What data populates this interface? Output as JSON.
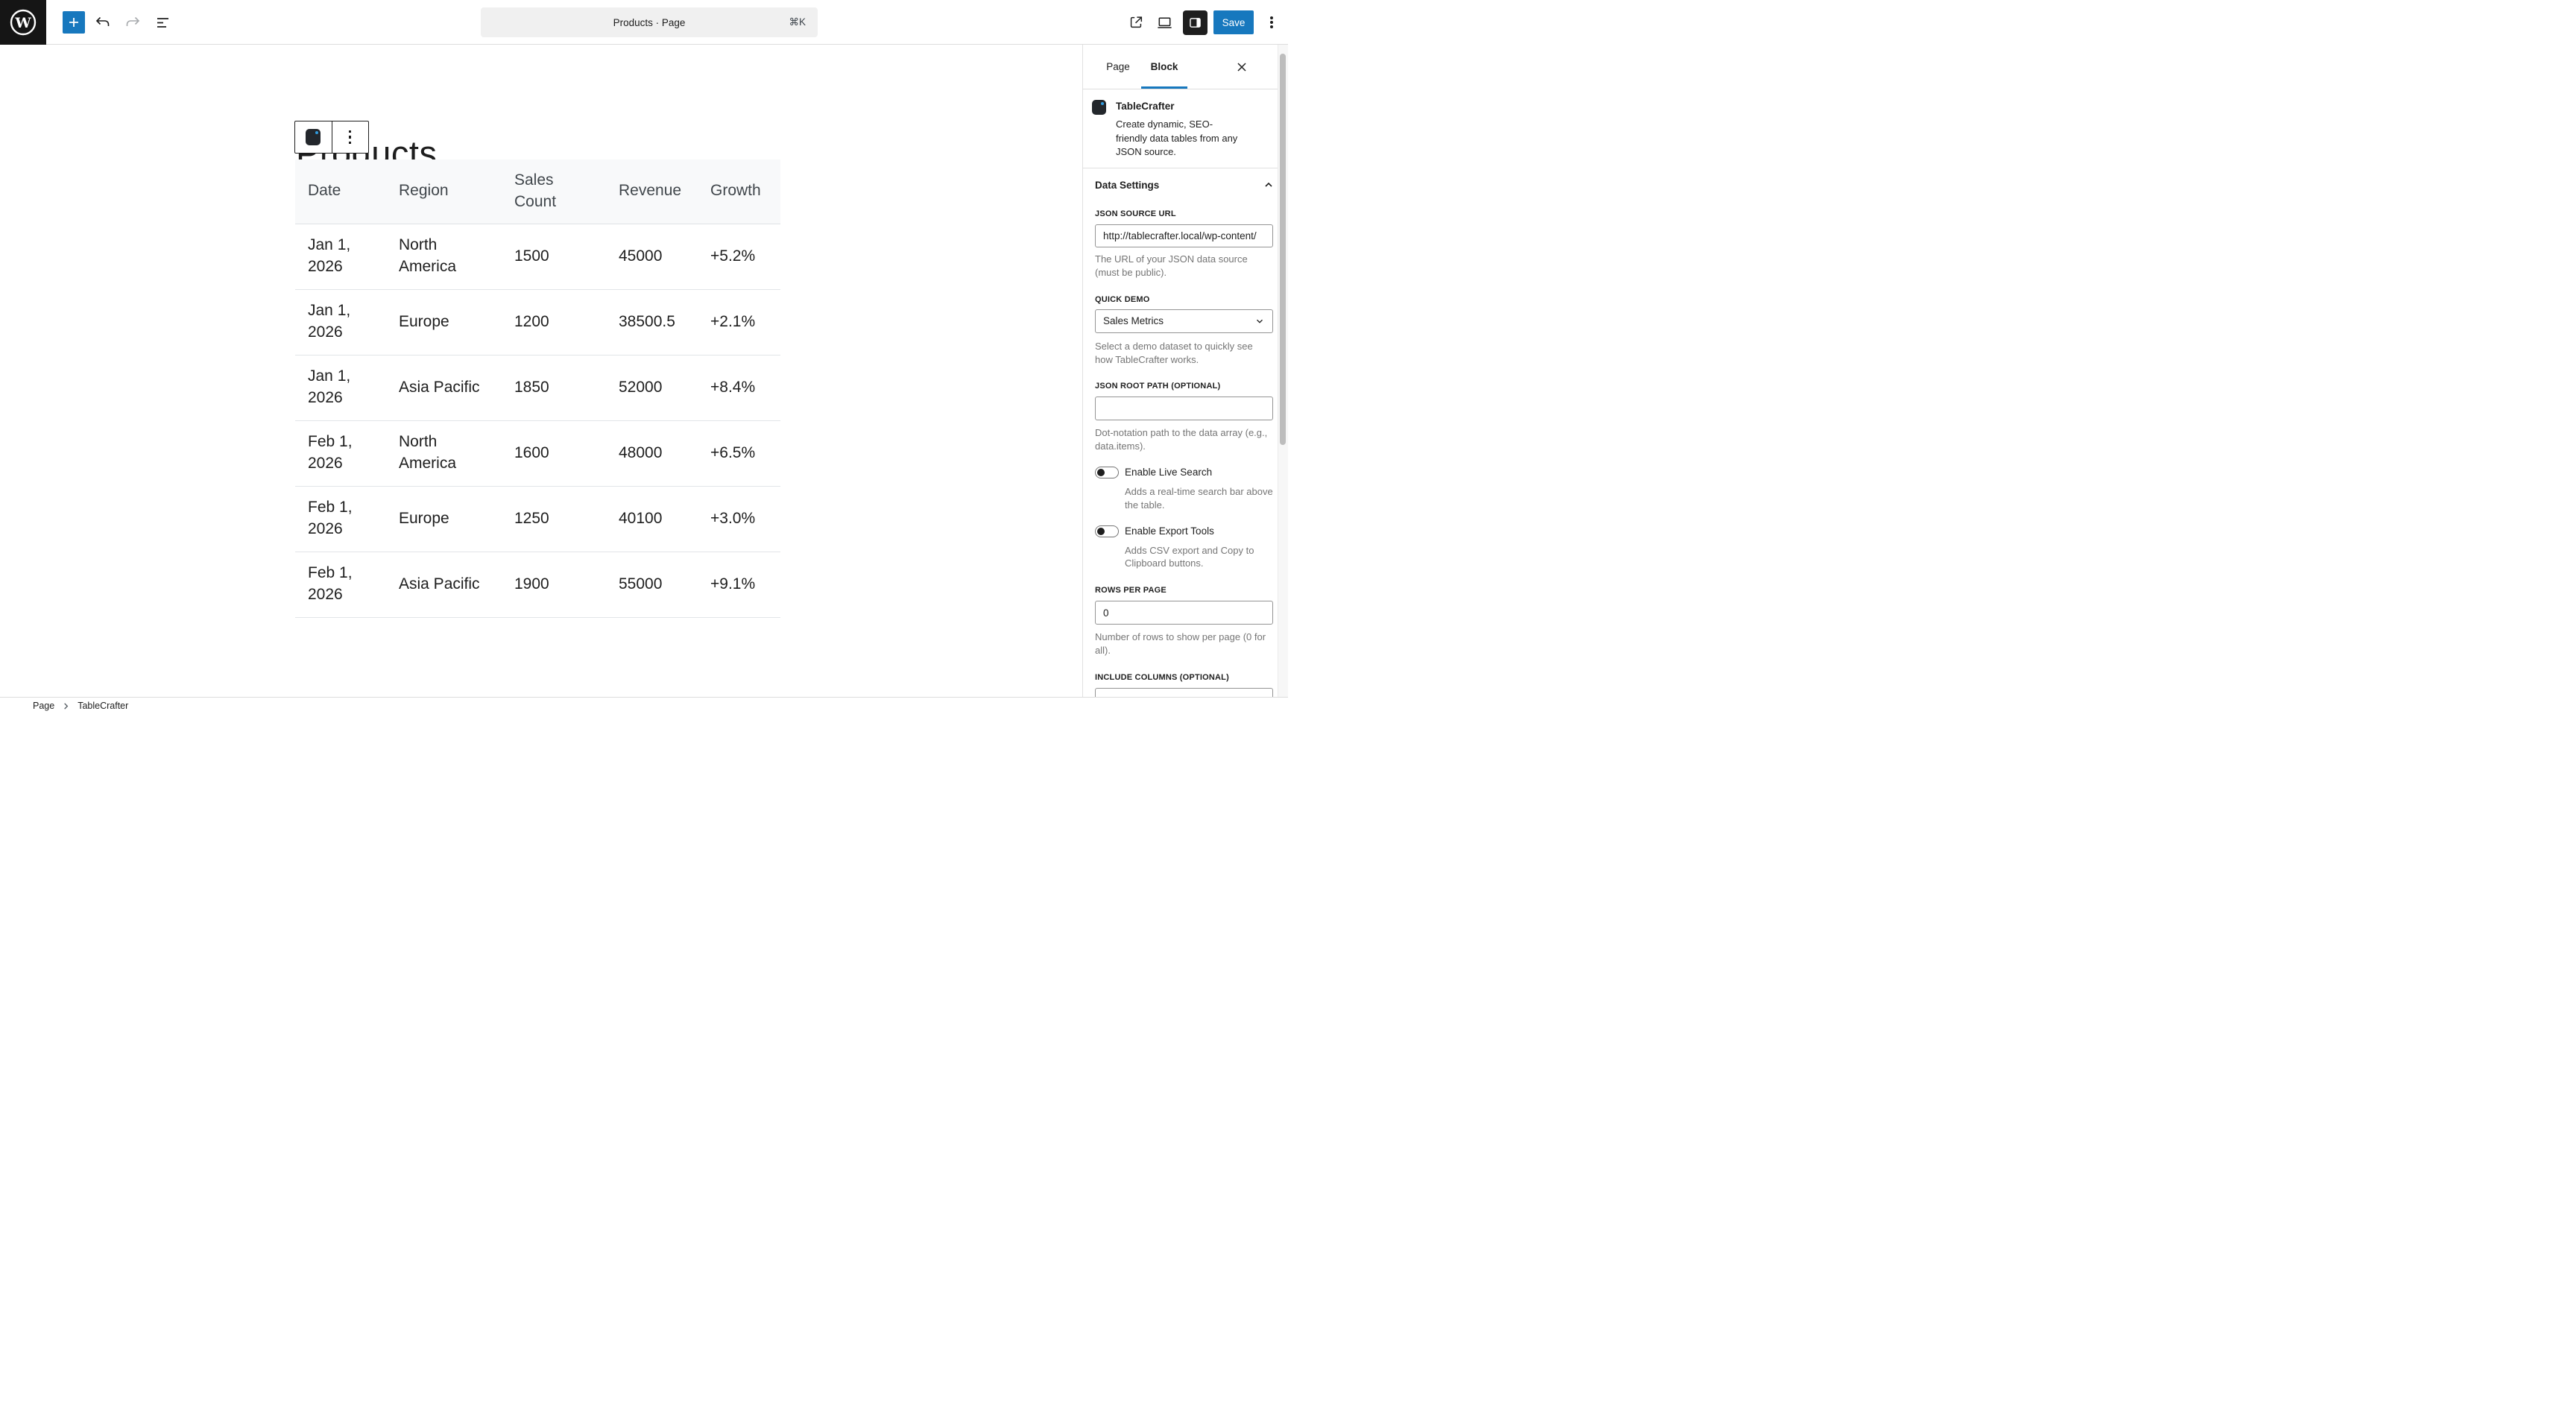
{
  "colors": {
    "accent": "#1778be",
    "icon_dot_blue": "#2f9bdd",
    "dark": "#1e1e1e",
    "table_header_text": "#40464b",
    "help_text": "#757575"
  },
  "topbar": {
    "command_center": {
      "title": "Products · Page",
      "shortcut": "⌘K"
    },
    "save_label": "Save"
  },
  "canvas": {
    "page_title": "Products",
    "table": {
      "headers": [
        "Date",
        "Region",
        "Sales Count",
        "Revenue",
        "Growth"
      ],
      "rows": [
        [
          "Jan 1, 2026",
          "North America",
          "1500",
          "45000",
          "+5.2%"
        ],
        [
          "Jan 1, 2026",
          "Europe",
          "1200",
          "38500.5",
          "+2.1%"
        ],
        [
          "Jan 1, 2026",
          "Asia Pacific",
          "1850",
          "52000",
          "+8.4%"
        ],
        [
          "Feb 1, 2026",
          "North America",
          "1600",
          "48000",
          "+6.5%"
        ],
        [
          "Feb 1, 2026",
          "Europe",
          "1250",
          "40100",
          "+3.0%"
        ],
        [
          "Feb 1, 2026",
          "Asia Pacific",
          "1900",
          "55000",
          "+9.1%"
        ]
      ]
    },
    "breadcrumb": [
      "Page",
      "TableCrafter"
    ]
  },
  "sidebar": {
    "tabs": {
      "page": "Page",
      "block": "Block"
    },
    "block_card": {
      "title": "TableCrafter",
      "description": "Create dynamic, SEO-friendly data tables from any JSON source."
    },
    "panel_title": "Data Settings",
    "fields": {
      "json_source": {
        "label": "JSON SOURCE URL",
        "value": "http://tablecrafter.local/wp-content/",
        "help": "The URL of your JSON data source (must be public)."
      },
      "quick_demo": {
        "label": "QUICK DEMO",
        "value": "Sales Metrics",
        "help": "Select a demo dataset to quickly see how TableCrafter works."
      },
      "root_path": {
        "label": "JSON ROOT PATH (OPTIONAL)",
        "value": "",
        "help": "Dot-notation path to the data array (e.g., data.items)."
      },
      "live_search": {
        "label": "Enable Live Search",
        "help": "Adds a real-time search bar above the table."
      },
      "export_tools": {
        "label": "Enable Export Tools",
        "help": "Adds CSV export and Copy to Clipboard buttons."
      },
      "rows_per_page": {
        "label": "ROWS PER PAGE",
        "value": "0",
        "help": "Number of rows to show per page (0 for all)."
      },
      "include_columns": {
        "label": "INCLUDE COLUMNS (OPTIONAL)",
        "value": ""
      }
    }
  }
}
